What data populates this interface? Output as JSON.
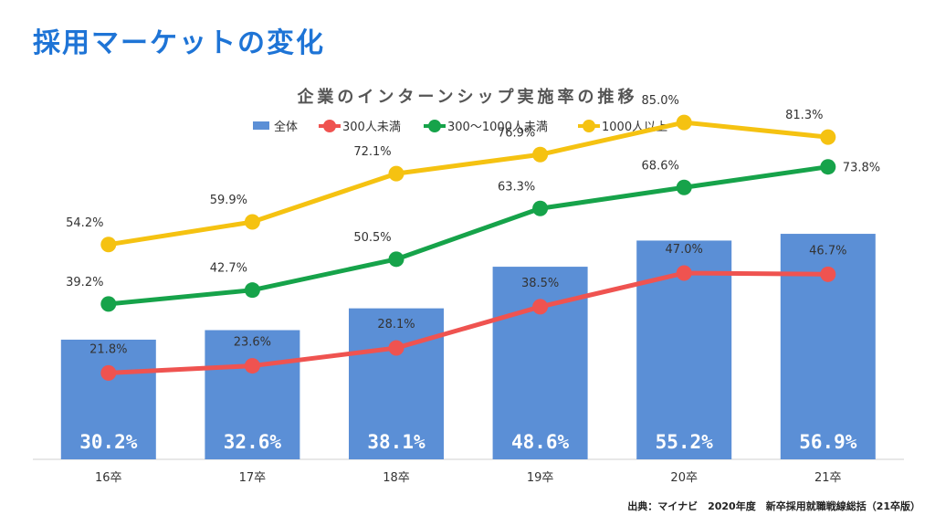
{
  "page": {
    "title": "採用マーケットの変化",
    "source": "出典：マイナビ　2020年度　新卒採用就職戦線総括（21卒版）"
  },
  "colors": {
    "title": "#1e74d6",
    "bar": "#5b8fd6",
    "red": "#ef5350",
    "green": "#16a34a",
    "yellow": "#f5c211"
  },
  "chart_data": {
    "type": "bar",
    "title": "企業のインターンシップ実施率の推移",
    "legend_position": "top",
    "categories": [
      "16卒",
      "17卒",
      "18卒",
      "19卒",
      "20卒",
      "21卒"
    ],
    "ylim": [
      0,
      100
    ],
    "grid": false,
    "series": [
      {
        "name": "全体",
        "kind": "bar",
        "color": "#5b8fd6",
        "values": [
          30.2,
          32.6,
          38.1,
          48.6,
          55.2,
          56.9
        ],
        "labels": [
          "30.2%",
          "32.6%",
          "38.1%",
          "48.6%",
          "55.2%",
          "56.9%"
        ]
      },
      {
        "name": "300人未満",
        "kind": "line",
        "color": "#ef5350",
        "values": [
          21.8,
          23.6,
          28.1,
          38.5,
          47.0,
          46.7
        ],
        "labels": [
          "21.8%",
          "23.6%",
          "28.1%",
          "38.5%",
          "47.0%",
          "46.7%"
        ]
      },
      {
        "name": "300～1000人未満",
        "kind": "line",
        "color": "#16a34a",
        "values": [
          39.2,
          42.7,
          50.5,
          63.3,
          68.6,
          73.8
        ],
        "labels": [
          "39.2%",
          "42.7%",
          "50.5%",
          "63.3%",
          "68.6%",
          "73.8%"
        ]
      },
      {
        "name": "1000人以上",
        "kind": "line",
        "color": "#f5c211",
        "values": [
          54.2,
          59.9,
          72.1,
          76.9,
          85.0,
          81.3
        ],
        "labels": [
          "54.2%",
          "59.9%",
          "72.1%",
          "76.9%",
          "85.0%",
          "81.3%"
        ]
      }
    ]
  }
}
